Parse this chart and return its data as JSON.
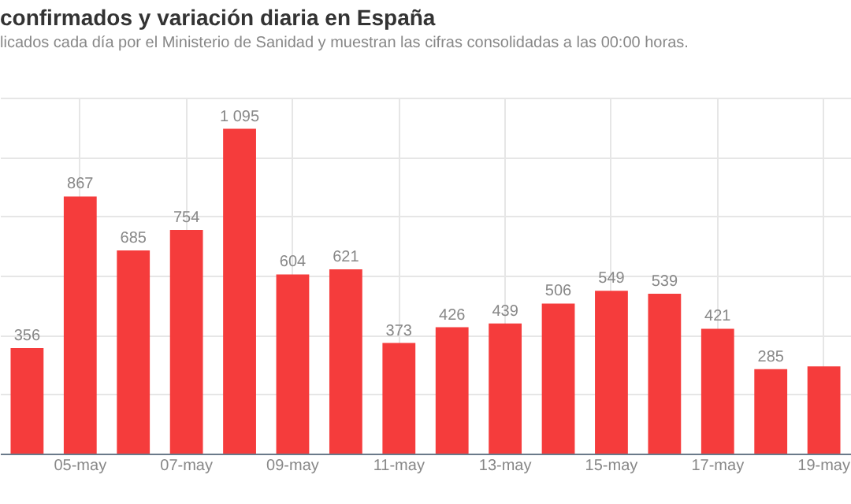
{
  "chart_data": {
    "type": "bar",
    "title": "confirmados y variación diaria en España",
    "subtitle": "licados cada día por el Ministerio de Sanidad y muestran las cifras consolidadas a las 00:00 horas.",
    "categories": [
      null,
      "05-may",
      null,
      "07-may",
      null,
      "09-may",
      null,
      "11-may",
      null,
      "13-may",
      null,
      "15-may",
      null,
      "17-may",
      null,
      "19-may"
    ],
    "values": [
      356,
      867,
      685,
      754,
      1095,
      604,
      621,
      373,
      426,
      439,
      506,
      549,
      539,
      421,
      285,
      294
    ],
    "value_labels": [
      "356",
      "867",
      "685",
      "754",
      "1 095",
      "604",
      "621",
      "373",
      "426",
      "439",
      "506",
      "549",
      "539",
      "421",
      "285",
      null
    ],
    "color": "#f53c3c",
    "ylim": [
      0,
      1200
    ],
    "grid": true,
    "tick_labels": "x"
  }
}
